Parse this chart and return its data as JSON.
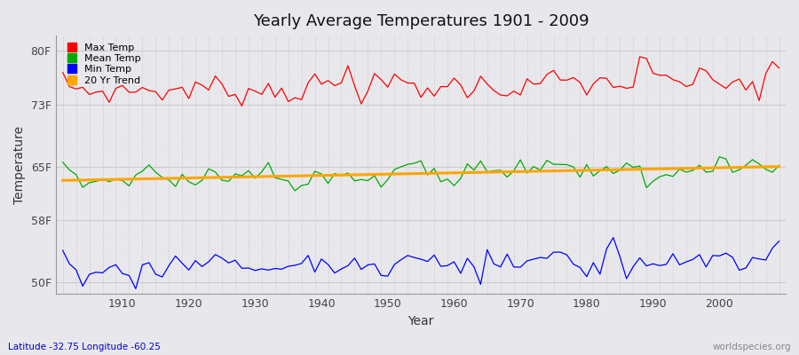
{
  "title": "Yearly Average Temperatures 1901 - 2009",
  "xlabel": "Year",
  "ylabel": "Temperature",
  "latitude": "Latitude -32.75 Longitude -60.25",
  "watermark": "worldspecies.org",
  "years_start": 1901,
  "years_end": 2009,
  "bg_color": "#e8e8ec",
  "plot_bg_color": "#e8e8ec",
  "grid_color_h": "#d0d0d8",
  "grid_color_v": "#c8c8d4",
  "yticks": [
    50,
    58,
    65,
    73,
    80
  ],
  "ytick_labels": [
    "50F",
    "58F",
    "65F",
    "73F",
    "80F"
  ],
  "ylim": [
    48.5,
    82
  ],
  "xlim": [
    1900,
    2010
  ],
  "colors": {
    "max": "#ff0000",
    "mean": "#00aa00",
    "min": "#0000ff",
    "trend": "#ffa500"
  },
  "legend_labels": [
    "Max Temp",
    "Mean Temp",
    "Min Temp",
    "20 Yr Trend"
  ],
  "xticks": [
    1910,
    1920,
    1930,
    1940,
    1950,
    1960,
    1970,
    1980,
    1990,
    2000
  ]
}
